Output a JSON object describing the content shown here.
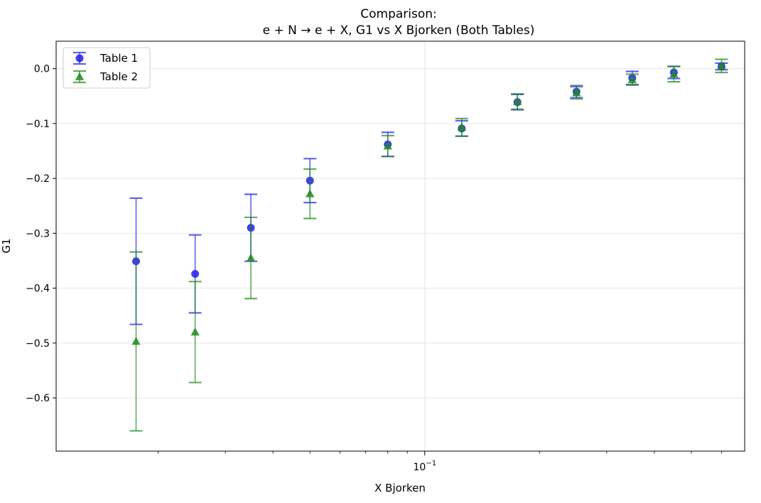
{
  "chart_data": {
    "type": "scatter",
    "title": [
      "Comparison:",
      "e + N → e + X, G1 vs X Bjorken (Both Tables)"
    ],
    "xlabel": "X Bjorken",
    "ylabel": "G1",
    "xscale": "log",
    "xlim": [
      0.0108,
      0.69
    ],
    "ylim": [
      -0.697,
      0.05
    ],
    "grid": true,
    "x_major_ticks": [
      {
        "value": 0.1,
        "base": "10",
        "exp": "−1"
      }
    ],
    "x_minor_ticks": [
      0.02,
      0.03,
      0.04,
      0.05,
      0.06,
      0.07,
      0.08,
      0.09,
      0.2,
      0.3,
      0.4,
      0.5,
      0.6
    ],
    "y_ticks": [
      {
        "value": 0.0,
        "label": "0.0"
      },
      {
        "value": -0.1,
        "label": "−0.1"
      },
      {
        "value": -0.2,
        "label": "−0.2"
      },
      {
        "value": -0.3,
        "label": "−0.3"
      },
      {
        "value": -0.4,
        "label": "−0.4"
      },
      {
        "value": -0.5,
        "label": "−0.5"
      },
      {
        "value": -0.6,
        "label": "−0.6"
      }
    ],
    "legend_position": "top-left",
    "series": [
      {
        "name": "Table 1",
        "marker": "circle",
        "color": "#2020e8",
        "x": [
          0.0175,
          0.025,
          0.035,
          0.05,
          0.08,
          0.125,
          0.175,
          0.25,
          0.35,
          0.45,
          0.6
        ],
        "y": [
          -0.351,
          -0.374,
          -0.29,
          -0.204,
          -0.138,
          -0.109,
          -0.061,
          -0.042,
          -0.017,
          -0.007,
          0.004
        ],
        "err": [
          0.115,
          0.071,
          0.061,
          0.04,
          0.022,
          0.014,
          0.014,
          0.011,
          0.012,
          0.011,
          0.006
        ]
      },
      {
        "name": "Table 2",
        "marker": "triangle",
        "color": "#1e8c1e",
        "x": [
          0.0175,
          0.025,
          0.035,
          0.05,
          0.08,
          0.125,
          0.175,
          0.25,
          0.35,
          0.45,
          0.6
        ],
        "y": [
          -0.497,
          -0.48,
          -0.345,
          -0.228,
          -0.141,
          -0.107,
          -0.06,
          -0.044,
          -0.02,
          -0.01,
          0.005
        ],
        "err": [
          0.163,
          0.092,
          0.074,
          0.045,
          0.019,
          0.016,
          0.014,
          0.011,
          0.01,
          0.014,
          0.012
        ]
      }
    ]
  }
}
